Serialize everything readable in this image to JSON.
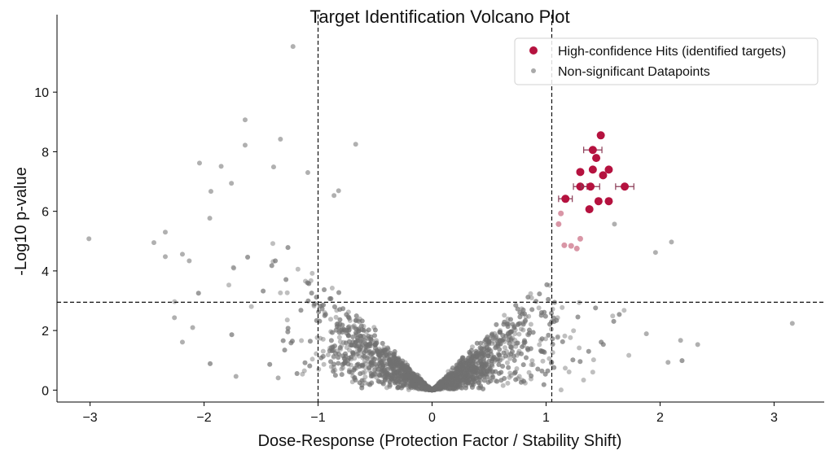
{
  "chart_data": {
    "type": "scatter",
    "title": "Target Identification Volcano Plot",
    "xlabel": "Dose-Response (Protection Factor / Stability Shift)",
    "ylabel": "-Log10 p-value",
    "xlim": [
      -3.29,
      3.44
    ],
    "ylim": [
      -0.4,
      12.6
    ],
    "xticks": [
      -3,
      -2,
      -1,
      0,
      1,
      2,
      3
    ],
    "yticks": [
      0,
      2,
      4,
      6,
      8,
      10
    ],
    "grid": false,
    "legend_position": "top-right",
    "thresholds": {
      "x": [
        -1.0,
        1.05
      ],
      "y": 2.95
    },
    "colors": {
      "hit": "#b5123f",
      "nonsig": "#707070",
      "faded_hit": "#c96a80"
    },
    "series": [
      {
        "name": "High-confidence Hits (identified targets)",
        "points": [
          {
            "x": 1.48,
            "y": 8.55
          },
          {
            "x": 1.41,
            "y": 8.06,
            "xerr": 0.08
          },
          {
            "x": 1.44,
            "y": 7.79
          },
          {
            "x": 1.3,
            "y": 7.32
          },
          {
            "x": 1.41,
            "y": 7.4
          },
          {
            "x": 1.55,
            "y": 7.4
          },
          {
            "x": 1.5,
            "y": 7.21
          },
          {
            "x": 1.3,
            "y": 6.83,
            "xerr": 0.06
          },
          {
            "x": 1.39,
            "y": 6.83,
            "xerr": 0.08
          },
          {
            "x": 1.69,
            "y": 6.83,
            "xerr": 0.08
          },
          {
            "x": 1.17,
            "y": 6.42,
            "xerr": 0.06
          },
          {
            "x": 1.46,
            "y": 6.34
          },
          {
            "x": 1.55,
            "y": 6.34
          },
          {
            "x": 1.38,
            "y": 6.07
          }
        ]
      },
      {
        "points": [
          {
            "x": 1.13,
            "y": 5.93
          },
          {
            "x": 1.11,
            "y": 5.57
          },
          {
            "x": 1.3,
            "y": 5.08
          },
          {
            "x": 1.16,
            "y": 4.86
          },
          {
            "x": 1.22,
            "y": 4.84
          },
          {
            "x": 1.27,
            "y": 4.75
          }
        ]
      },
      {
        "name": "Non-significant Datapoints",
        "points": [
          {
            "x": -1.22,
            "y": 11.53
          },
          {
            "x": -1.64,
            "y": 9.07
          },
          {
            "x": -1.64,
            "y": 8.22
          },
          {
            "x": -1.33,
            "y": 8.42
          },
          {
            "x": -0.67,
            "y": 8.25
          },
          {
            "x": -2.04,
            "y": 7.62
          },
          {
            "x": -1.85,
            "y": 7.51
          },
          {
            "x": -1.39,
            "y": 7.49
          },
          {
            "x": -1.09,
            "y": 7.3
          },
          {
            "x": -3.01,
            "y": 5.08
          },
          {
            "x": -2.44,
            "y": 4.95
          },
          {
            "x": -2.34,
            "y": 5.3
          },
          {
            "x": -2.34,
            "y": 4.48
          },
          {
            "x": -2.13,
            "y": 4.34
          },
          {
            "x": -1.95,
            "y": 5.77
          },
          {
            "x": 2.1,
            "y": 4.97
          },
          {
            "x": 3.16,
            "y": 2.24
          },
          {
            "x": 2.18,
            "y": 1.67
          },
          {
            "x": 2.33,
            "y": 1.53
          },
          {
            "x": 2.07,
            "y": 0.93
          },
          {
            "x": 1.88,
            "y": 1.89
          },
          {
            "x": 1.6,
            "y": 5.57
          },
          {
            "x": 1.96,
            "y": 4.62
          },
          {
            "x": -2.19,
            "y": 4.56
          },
          {
            "x": -2.1,
            "y": 2.1
          },
          {
            "x": -2.19,
            "y": 1.61
          },
          {
            "x": -2.26,
            "y": 2.43
          },
          {
            "x": -1.72,
            "y": 0.46
          },
          {
            "x": -1.35,
            "y": 0.41
          },
          {
            "x": -1.94,
            "y": 6.67
          },
          {
            "x": -1.76,
            "y": 6.94
          },
          {
            "x": -0.86,
            "y": 6.53
          },
          {
            "x": -0.82,
            "y": 6.69
          }
        ]
      }
    ]
  }
}
